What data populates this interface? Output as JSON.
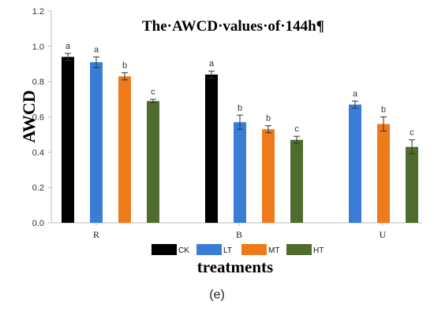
{
  "chart_data": {
    "type": "bar",
    "title": "The·AWCD·values·of·144h¶",
    "xlabel": "treatments",
    "ylabel": "AWCD",
    "ylim": [
      0,
      1.2
    ],
    "yticks": [
      "0.0",
      "0.2",
      "0.4",
      "0.6",
      "0.8",
      "1.0",
      "1.2"
    ],
    "categories": [
      "R",
      "B",
      "U"
    ],
    "groups": [
      {
        "category": "R",
        "bars": [
          {
            "series": "CK",
            "value": 0.94,
            "err": 0.02,
            "sig": "a"
          },
          {
            "series": "LT",
            "value": 0.91,
            "err": 0.03,
            "sig": "a"
          },
          {
            "series": "MT",
            "value": 0.83,
            "err": 0.02,
            "sig": "b"
          },
          {
            "series": "HT",
            "value": 0.69,
            "err": 0.01,
            "sig": "c"
          }
        ]
      },
      {
        "category": "B",
        "bars": [
          {
            "series": "CK",
            "value": 0.84,
            "err": 0.02,
            "sig": "a"
          },
          {
            "series": "LT",
            "value": 0.57,
            "err": 0.04,
            "sig": "b"
          },
          {
            "series": "MT",
            "value": 0.53,
            "err": 0.02,
            "sig": "b"
          },
          {
            "series": "HT",
            "value": 0.47,
            "err": 0.02,
            "sig": "c"
          }
        ]
      },
      {
        "category": "U",
        "bars": [
          {
            "series": "LT",
            "value": 0.67,
            "err": 0.02,
            "sig": "a"
          },
          {
            "series": "MT",
            "value": 0.56,
            "err": 0.04,
            "sig": "b"
          },
          {
            "series": "HT",
            "value": 0.43,
            "err": 0.04,
            "sig": "c"
          }
        ]
      }
    ],
    "series": [
      {
        "name": "CK",
        "color": "#000000"
      },
      {
        "name": "LT",
        "color": "#3a7dd6"
      },
      {
        "name": "MT",
        "color": "#ef7a1a"
      },
      {
        "name": "HT",
        "color": "#4f6b2e"
      }
    ],
    "legend": "bottom",
    "grid": false
  },
  "caption": "(e)"
}
